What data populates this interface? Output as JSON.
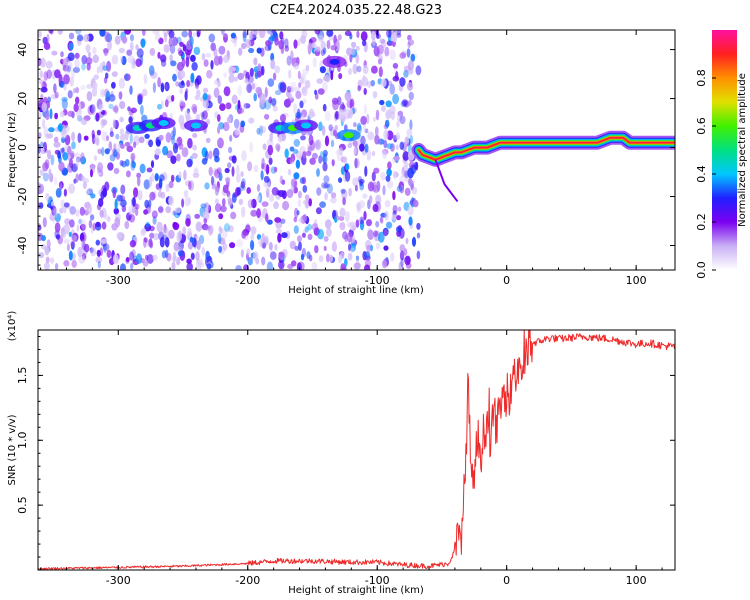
{
  "figure": {
    "title": "C2E4.2024.035.22.48.G23"
  },
  "chart_data": [
    {
      "type": "heatmap",
      "xlabel": "Height of straight line (km)",
      "ylabel": "Frequency (Hz)",
      "xlim": [
        -362,
        130
      ],
      "ylim": [
        -50,
        48
      ],
      "x_ticks": [
        -300,
        -200,
        -100,
        0,
        100
      ],
      "y_ticks": [
        -40,
        -20,
        0,
        20,
        40
      ],
      "colorbar": {
        "label": "Normalized spectral amplitude",
        "range": [
          0.0,
          1.0
        ],
        "ticks": [
          0.0,
          0.2,
          0.4,
          0.6,
          0.8
        ],
        "tick_labels": [
          "0.0",
          "0.2",
          "0.4",
          "0.6",
          "0.8"
        ],
        "colormap": [
          "#ffffff",
          "#c9b0f5",
          "#7a00f0",
          "#2020ff",
          "#00c8ff",
          "#00e080",
          "#40f000",
          "#e0e000",
          "#ff9000",
          "#ff2020",
          "#ff10a0"
        ]
      },
      "noise_region_x": [
        -362,
        -68
      ],
      "signal_track": {
        "x": [
          -68,
          -65,
          -60,
          -55,
          -50,
          -45,
          -40,
          -35,
          -30,
          -25,
          -20,
          -15,
          -10,
          -5,
          0,
          10,
          20,
          30,
          40,
          50,
          60,
          70,
          80,
          90,
          95,
          100,
          110,
          120,
          130
        ],
        "y": [
          -1,
          -3,
          -4,
          -5,
          -4,
          -3,
          -2,
          -2,
          -1,
          0,
          0,
          0,
          1,
          2,
          2,
          2,
          2,
          2,
          2,
          2,
          2,
          2,
          4,
          4,
          2,
          2,
          2,
          2,
          2
        ]
      },
      "noise_blobs": [
        {
          "x": -285,
          "y": 8,
          "value": 0.45
        },
        {
          "x": -275,
          "y": 9,
          "value": 0.5
        },
        {
          "x": -265,
          "y": 10,
          "value": 0.4
        },
        {
          "x": -240,
          "y": 9,
          "value": 0.4
        },
        {
          "x": -175,
          "y": 8,
          "value": 0.45
        },
        {
          "x": -165,
          "y": 8,
          "value": 0.6
        },
        {
          "x": -155,
          "y": 9,
          "value": 0.4
        },
        {
          "x": -122,
          "y": 5,
          "value": 0.6
        },
        {
          "x": -133,
          "y": 35,
          "value": 0.3
        }
      ]
    },
    {
      "type": "line",
      "xlabel": "Height of straight line (km)",
      "ylabel": "SNR (10 * v/v)",
      "scale_label": "(x10⁴)",
      "xlim": [
        -362,
        130
      ],
      "ylim": [
        0,
        1.85
      ],
      "x_ticks": [
        -300,
        -200,
        -100,
        0,
        100
      ],
      "y_ticks": [
        0.5,
        1.0,
        1.5
      ],
      "y_tick_labels": [
        "0.5",
        "1.0",
        "1.5"
      ],
      "line_color": "#ee2a2a",
      "series": [
        {
          "x": [
            -362,
            -300,
            -250,
            -200,
            -180,
            -150,
            -120,
            -100,
            -80,
            -60,
            -45,
            -40,
            -35,
            -32,
            -30,
            -27,
            -25,
            -22,
            -20,
            -17,
            -15,
            -12,
            -10,
            -7,
            -5,
            -2,
            0,
            3,
            5,
            8,
            10,
            12,
            15,
            18,
            20,
            25,
            30,
            35,
            40,
            50,
            60,
            70,
            80,
            90,
            100,
            110,
            120,
            130
          ],
          "y": [
            0.01,
            0.02,
            0.03,
            0.05,
            0.07,
            0.07,
            0.06,
            0.06,
            0.04,
            0.03,
            0.05,
            0.15,
            0.3,
            0.7,
            1.45,
            0.6,
            0.8,
            1.0,
            0.9,
            1.1,
            1.15,
            1.0,
            1.2,
            1.1,
            1.3,
            1.25,
            1.4,
            1.35,
            1.55,
            1.5,
            1.6,
            1.55,
            1.65,
            1.72,
            1.75,
            1.76,
            1.78,
            1.79,
            1.78,
            1.79,
            1.8,
            1.79,
            1.78,
            1.76,
            1.74,
            1.75,
            1.73,
            1.72
          ]
        }
      ]
    }
  ]
}
